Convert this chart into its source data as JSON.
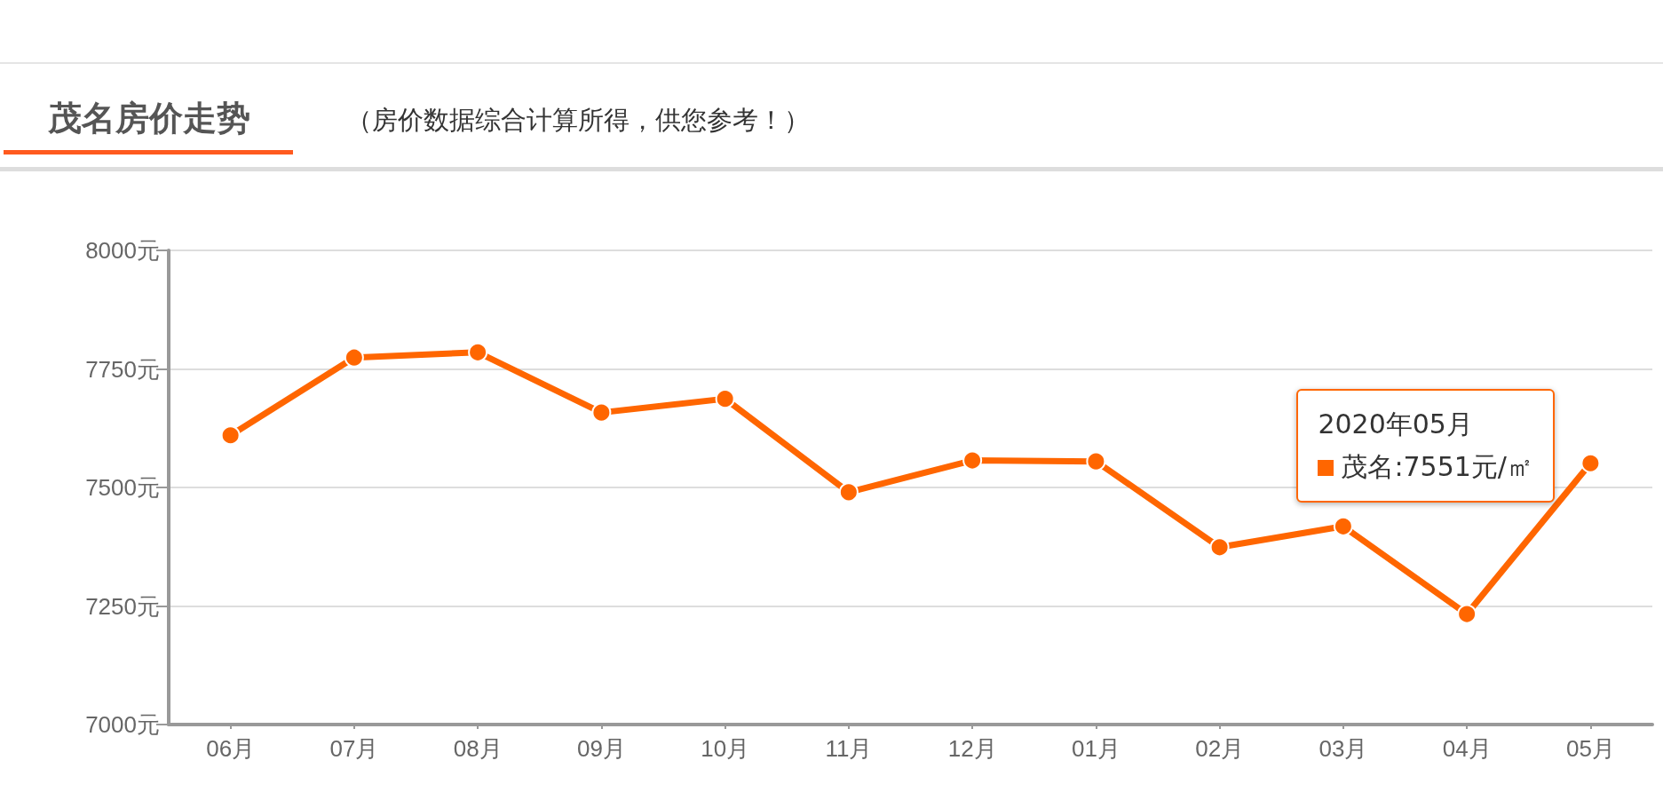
{
  "chart_data": {
    "type": "line",
    "title": "茂名房价走势",
    "subtitle": "（房价数据综合计算所得，供您参考！）",
    "categories": [
      "06月",
      "07月",
      "08月",
      "09月",
      "10月",
      "11月",
      "12月",
      "01月",
      "02月",
      "03月",
      "04月",
      "05月"
    ],
    "series": [
      {
        "name": "茂名",
        "color": "#ff6600",
        "values": [
          7610,
          7774,
          7785,
          7658,
          7687,
          7490,
          7557,
          7555,
          7374,
          7418,
          7233,
          7551
        ],
        "value_labels": [
          null,
          null,
          null,
          null,
          null,
          null,
          null,
          null,
          null,
          null,
          null,
          ":7551元/㎡"
        ]
      }
    ],
    "ylim": [
      7000,
      8000
    ],
    "yticks": [
      {
        "value": 7000,
        "label": "7000元"
      },
      {
        "value": 7250,
        "label": "7250元"
      },
      {
        "value": 7500,
        "label": "7500元"
      },
      {
        "value": 7750,
        "label": "7750元"
      },
      {
        "value": 8000,
        "label": "8000元"
      }
    ],
    "grid": "y",
    "marker": "circle",
    "line_style": "solid",
    "annotations": [
      "2020年05月"
    ]
  }
}
